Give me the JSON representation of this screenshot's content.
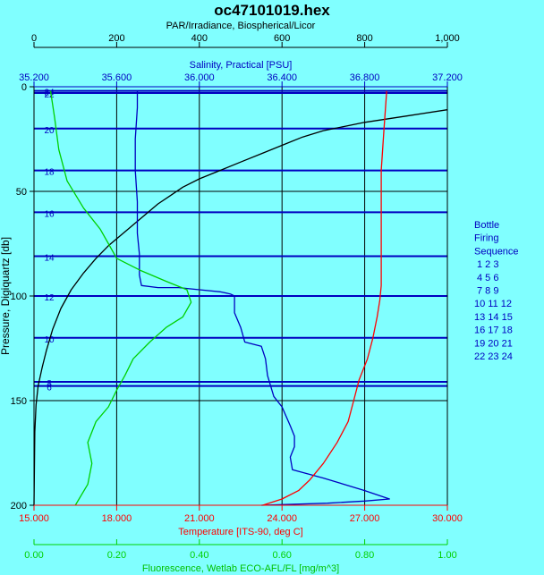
{
  "chart_data": {
    "type": "line",
    "title": "oc47101019.hex",
    "ylabel": "Pressure, Digiquartz [db]",
    "ylim": [
      0,
      200
    ],
    "y_reversed": true,
    "y_ticks": [
      "0",
      "50",
      "100",
      "150",
      "200"
    ],
    "axes": {
      "par": {
        "label": "PAR/Irradiance, Biospherical/Licor",
        "range": [
          0,
          1000
        ],
        "ticks": [
          "0",
          "200",
          "400",
          "600",
          "800",
          "1,000"
        ],
        "color": "#000000"
      },
      "salinity": {
        "label": "Salinity, Practical [PSU]",
        "range": [
          35.2,
          37.2
        ],
        "ticks": [
          "35.200",
          "35.600",
          "36.000",
          "36.400",
          "36.800",
          "37.200"
        ],
        "color": "#0000c0"
      },
      "temperature": {
        "label": "Temperature [ITS-90, deg C]",
        "range": [
          15,
          30
        ],
        "ticks": [
          "15.000",
          "18.000",
          "21.000",
          "24.000",
          "27.000",
          "30.000"
        ],
        "color": "#ff0000"
      },
      "fluorescence": {
        "label": "Fluorescence, Wetlab ECO-AFL/FL [mg/m^3]",
        "range": [
          0,
          1
        ],
        "ticks": [
          "0.00",
          "0.20",
          "0.40",
          "0.60",
          "0.80",
          "1.00"
        ],
        "color": "#00d000"
      }
    },
    "bottles": [
      {
        "label": "24",
        "depth": 2
      },
      {
        "label": "22",
        "depth": 3
      },
      {
        "label": "20",
        "depth": 20
      },
      {
        "label": "18",
        "depth": 40
      },
      {
        "label": "16",
        "depth": 60
      },
      {
        "label": "14",
        "depth": 81
      },
      {
        "label": "12",
        "depth": 100
      },
      {
        "label": "10",
        "depth": 120
      },
      {
        "label": "8",
        "depth": 141
      },
      {
        "label": "6",
        "depth": 143
      }
    ],
    "series": [
      {
        "axis": "par",
        "color": "#000000",
        "points": [
          [
            1000,
            11
          ],
          [
            900,
            14
          ],
          [
            800,
            17
          ],
          [
            750,
            19
          ],
          [
            700,
            21
          ],
          [
            650,
            24
          ],
          [
            600,
            28
          ],
          [
            550,
            32
          ],
          [
            500,
            36
          ],
          [
            450,
            40
          ],
          [
            400,
            44
          ],
          [
            360,
            48
          ],
          [
            330,
            52
          ],
          [
            300,
            56
          ],
          [
            270,
            61
          ],
          [
            240,
            66
          ],
          [
            210,
            71
          ],
          [
            180,
            76
          ],
          [
            150,
            82
          ],
          [
            120,
            89
          ],
          [
            90,
            97
          ],
          [
            65,
            106
          ],
          [
            45,
            116
          ],
          [
            30,
            126
          ],
          [
            20,
            134
          ],
          [
            10,
            143
          ],
          [
            5,
            152
          ],
          [
            2,
            165
          ],
          [
            0,
            200
          ]
        ]
      },
      {
        "axis": "salinity",
        "color": "#0000c0",
        "points": [
          [
            35.7,
            2
          ],
          [
            35.7,
            10
          ],
          [
            35.69,
            25
          ],
          [
            35.69,
            40
          ],
          [
            35.7,
            55
          ],
          [
            35.7,
            62
          ],
          [
            35.7,
            70
          ],
          [
            35.71,
            80
          ],
          [
            35.71,
            90
          ],
          [
            35.72,
            95
          ],
          [
            35.8,
            96
          ],
          [
            35.9,
            96
          ],
          [
            36.0,
            97
          ],
          [
            36.1,
            98
          ],
          [
            36.15,
            99
          ],
          [
            36.17,
            100
          ],
          [
            36.17,
            108
          ],
          [
            36.2,
            115
          ],
          [
            36.22,
            122
          ],
          [
            36.3,
            124
          ],
          [
            36.32,
            130
          ],
          [
            36.33,
            138
          ],
          [
            36.36,
            148
          ],
          [
            36.4,
            153
          ],
          [
            36.44,
            162
          ],
          [
            36.46,
            167
          ],
          [
            36.46,
            172
          ],
          [
            36.44,
            177
          ],
          [
            36.45,
            183
          ],
          [
            36.6,
            187
          ],
          [
            36.8,
            193
          ],
          [
            36.92,
            197
          ],
          [
            36.8,
            198
          ],
          [
            36.62,
            199
          ],
          [
            36.3,
            200
          ]
        ]
      },
      {
        "axis": "temperature",
        "color": "#ff0000",
        "points": [
          [
            27.8,
            2
          ],
          [
            27.7,
            20
          ],
          [
            27.6,
            40
          ],
          [
            27.6,
            60
          ],
          [
            27.6,
            80
          ],
          [
            27.6,
            95
          ],
          [
            27.55,
            102
          ],
          [
            27.45,
            110
          ],
          [
            27.3,
            120
          ],
          [
            27.1,
            130
          ],
          [
            26.8,
            140
          ],
          [
            26.6,
            150
          ],
          [
            26.4,
            160
          ],
          [
            26.0,
            170
          ],
          [
            25.5,
            180
          ],
          [
            25.0,
            188
          ],
          [
            24.6,
            193
          ],
          [
            24.0,
            197
          ],
          [
            23.3,
            200
          ]
        ]
      },
      {
        "axis": "fluorescence",
        "color": "#00d000",
        "points": [
          [
            0.04,
            2
          ],
          [
            0.05,
            15
          ],
          [
            0.06,
            30
          ],
          [
            0.08,
            45
          ],
          [
            0.12,
            58
          ],
          [
            0.16,
            68
          ],
          [
            0.18,
            75
          ],
          [
            0.2,
            82
          ],
          [
            0.26,
            88
          ],
          [
            0.32,
            93
          ],
          [
            0.37,
            97
          ],
          [
            0.38,
            103
          ],
          [
            0.36,
            110
          ],
          [
            0.32,
            115
          ],
          [
            0.28,
            122
          ],
          [
            0.24,
            130
          ],
          [
            0.22,
            138
          ],
          [
            0.2,
            145
          ],
          [
            0.18,
            153
          ],
          [
            0.15,
            160
          ],
          [
            0.13,
            170
          ],
          [
            0.14,
            180
          ],
          [
            0.13,
            190
          ],
          [
            0.1,
            200
          ]
        ]
      }
    ],
    "legend": {
      "title": "Bottle Firing Sequence",
      "lines": [
        "Bottle",
        "Firing",
        "Sequence",
        "1  2  3",
        "4  5  6",
        "7  8  9",
        "10 11 12",
        "13 14 15",
        "16 17 18",
        "19 20 21",
        "22 23 24"
      ],
      "position": "right"
    }
  }
}
